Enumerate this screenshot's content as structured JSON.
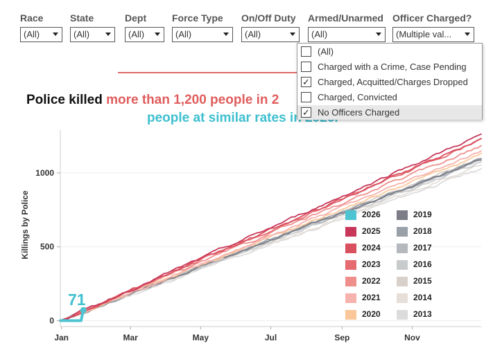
{
  "filters": [
    {
      "label": "Race",
      "value": "(All)"
    },
    {
      "label": "State",
      "value": "(All)"
    },
    {
      "label": "Dept",
      "value": "(All)"
    },
    {
      "label": "Force Type",
      "value": "(All)"
    },
    {
      "label": "On/Off Duty",
      "value": "(All)"
    },
    {
      "label": "Armed/Unarmed",
      "value": "(All)"
    },
    {
      "label": "Officer Charged?",
      "value": "(Multiple val..."
    }
  ],
  "dropdown": {
    "options": [
      {
        "label": "(All)",
        "checked": false
      },
      {
        "label": "Charged with a Crime, Case Pending",
        "checked": false
      },
      {
        "label": "Charged, Acquitted/Charges Dropped",
        "checked": true
      },
      {
        "label": "Charged, Convicted",
        "checked": false
      },
      {
        "label": "No Officers Charged",
        "checked": true
      }
    ],
    "check_mark": "✓"
  },
  "headline": {
    "prefix": "Police killed ",
    "highlight": "more than 1,200 people in 2",
    "subline": "people at similar rates in 2026."
  },
  "callout_value": "71",
  "chart_data": {
    "type": "line",
    "ylabel": "Killings by Police",
    "yticks": [
      0,
      500,
      1000
    ],
    "ylim": [
      -40,
      1290
    ],
    "xlim": [
      0,
      366
    ],
    "xticks": [
      {
        "label": "Jan",
        "day": 1
      },
      {
        "label": "Mar",
        "day": 61
      },
      {
        "label": "May",
        "day": 122
      },
      {
        "label": "Jul",
        "day": 183
      },
      {
        "label": "Sep",
        "day": 245
      },
      {
        "label": "Nov",
        "day": 306
      }
    ],
    "series": [
      {
        "name": "2026",
        "color": "#4ec3d2",
        "end_day": 20,
        "total": 71
      },
      {
        "name": "2025",
        "color": "#c8375a",
        "end_day": 366,
        "total": 1260
      },
      {
        "name": "2024",
        "color": "#d9505f",
        "end_day": 366,
        "total": 1230
      },
      {
        "name": "2023",
        "color": "#e56b70",
        "end_day": 366,
        "total": 1225
      },
      {
        "name": "2022",
        "color": "#ef8f8c",
        "end_day": 366,
        "total": 1185
      },
      {
        "name": "2021",
        "color": "#f6b2ad",
        "end_day": 366,
        "total": 1145
      },
      {
        "name": "2020",
        "color": "#fbc79a",
        "end_day": 366,
        "total": 1125
      },
      {
        "name": "2019",
        "color": "#7c7d86",
        "end_day": 366,
        "total": 1090
      },
      {
        "name": "2018",
        "color": "#9aa0a8",
        "end_day": 366,
        "total": 1100
      },
      {
        "name": "2017",
        "color": "#b5b8bd",
        "end_day": 366,
        "total": 1085
      },
      {
        "name": "2016",
        "color": "#c8cbcc",
        "end_day": 366,
        "total": 1070
      },
      {
        "name": "2015",
        "color": "#d8d1cb",
        "end_day": 366,
        "total": 1100
      },
      {
        "name": "2014",
        "color": "#e6dfd9",
        "end_day": 366,
        "total": 1050
      },
      {
        "name": "2013",
        "color": "#dddcdc",
        "end_day": 366,
        "total": 1030
      }
    ]
  }
}
